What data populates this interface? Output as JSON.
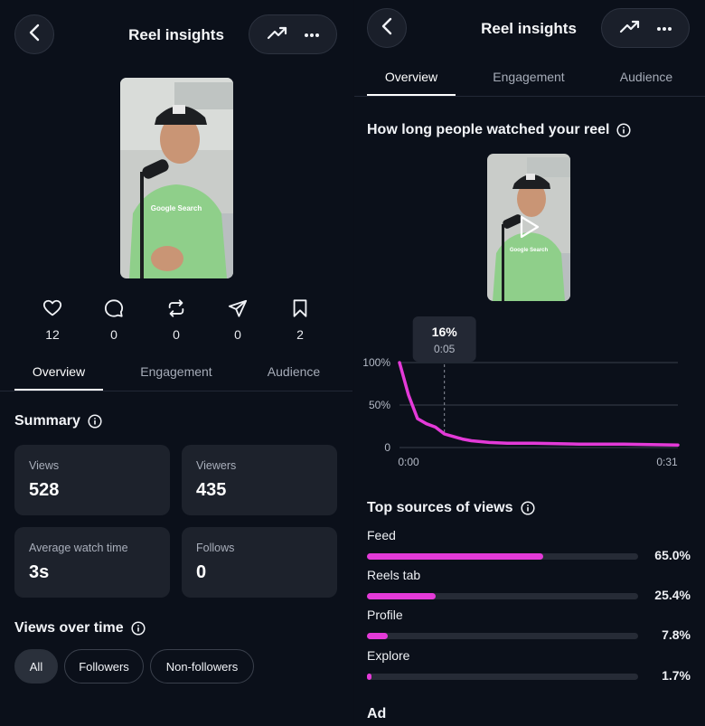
{
  "left": {
    "header": {
      "title": "Reel insights"
    },
    "thumbnail_caption": "Google Search",
    "stats": [
      {
        "icon": "heart-icon",
        "value": "12"
      },
      {
        "icon": "comment-icon",
        "value": "0"
      },
      {
        "icon": "repost-icon",
        "value": "0"
      },
      {
        "icon": "share-icon",
        "value": "0"
      },
      {
        "icon": "bookmark-icon",
        "value": "2"
      }
    ],
    "tabs": [
      "Overview",
      "Engagement",
      "Audience"
    ],
    "summary": {
      "title": "Summary",
      "cards": [
        {
          "label": "Views",
          "value": "528"
        },
        {
          "label": "Viewers",
          "value": "435"
        },
        {
          "label": "Average watch time",
          "value": "3s"
        },
        {
          "label": "Follows",
          "value": "0"
        }
      ]
    },
    "views_over_time": {
      "title": "Views over time",
      "chips": [
        "All",
        "Followers",
        "Non-followers"
      ],
      "selected": "All"
    }
  },
  "right": {
    "header": {
      "title": "Reel insights"
    },
    "tabs": [
      "Overview",
      "Engagement",
      "Audience"
    ],
    "watch_section": {
      "title": "How long people watched your reel"
    },
    "thumbnail_caption": "Google Search",
    "tooltip": {
      "value": "16%",
      "time": "0:05"
    },
    "chart_data": {
      "type": "line",
      "x_labels": [
        "0:00",
        "0:31"
      ],
      "y_ticks": [
        "100%",
        "50%",
        "0"
      ],
      "ylim": [
        0,
        100
      ],
      "xlim": [
        0,
        31
      ],
      "grid": true,
      "color": "#e43ad8",
      "x": [
        0,
        1,
        2,
        3,
        4,
        5,
        6,
        7,
        8,
        10,
        12,
        15,
        20,
        25,
        31
      ],
      "y": [
        100,
        62,
        34,
        28,
        24,
        16,
        13,
        10,
        8,
        6,
        5,
        5,
        4,
        4,
        3
      ],
      "highlight": {
        "x": 5,
        "y": 16
      }
    },
    "top_sources": {
      "title": "Top sources of views",
      "items": [
        {
          "label": "Feed",
          "value": "65.0%",
          "fraction": 0.65
        },
        {
          "label": "Reels tab",
          "value": "25.4%",
          "fraction": 0.254
        },
        {
          "label": "Profile",
          "value": "7.8%",
          "fraction": 0.078
        },
        {
          "label": "Explore",
          "value": "1.7%",
          "fraction": 0.017
        }
      ]
    },
    "bottom_section_title": "Ad"
  }
}
